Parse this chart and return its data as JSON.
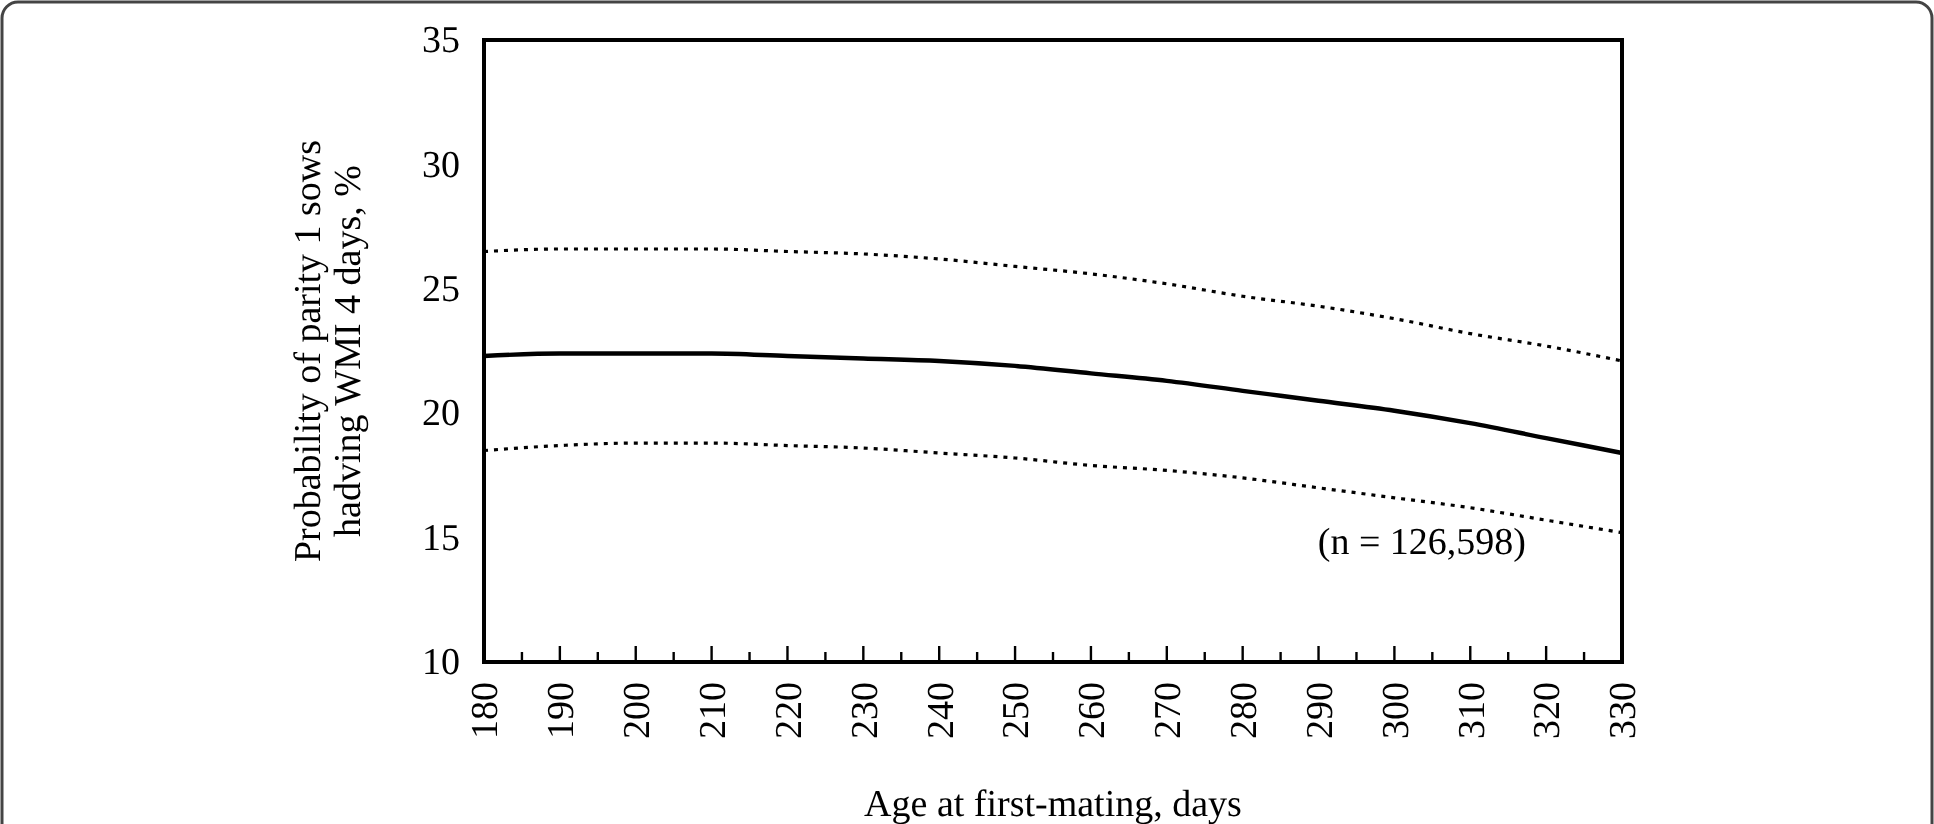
{
  "chart_data": {
    "type": "line",
    "xlabel": "Age at first-mating, days",
    "ylabel": "Probability of parity 1 sows hadving WMI 4 days, %",
    "x": [
      180,
      190,
      200,
      210,
      220,
      230,
      240,
      250,
      260,
      270,
      280,
      290,
      300,
      310,
      320,
      330
    ],
    "series": [
      {
        "color": "#000000",
        "line_style": "dotted",
        "values": [
          26.5,
          26.6,
          26.6,
          26.6,
          26.5,
          26.4,
          26.2,
          25.9,
          25.6,
          25.2,
          24.7,
          24.3,
          23.8,
          23.2,
          22.7,
          22.1
        ]
      },
      {
        "color": "#000000",
        "line_style": "solid",
        "values": [
          22.3,
          22.4,
          22.4,
          22.4,
          22.3,
          22.2,
          22.1,
          21.9,
          21.6,
          21.3,
          20.9,
          20.5,
          20.1,
          19.6,
          19.0,
          18.4
        ]
      },
      {
        "color": "#000000",
        "line_style": "dotted",
        "values": [
          18.5,
          18.7,
          18.8,
          18.8,
          18.7,
          18.6,
          18.4,
          18.2,
          17.9,
          17.7,
          17.4,
          17.0,
          16.6,
          16.2,
          15.7,
          15.2
        ]
      }
    ],
    "xlim": [
      180,
      330
    ],
    "ylim": [
      10,
      35
    ],
    "xticks": [
      180,
      {
        "value": 185,
        "label": null
      },
      190,
      {
        "value": 195,
        "label": null
      },
      200,
      {
        "value": 205,
        "label": null
      },
      210,
      {
        "value": 215,
        "label": null
      },
      220,
      {
        "value": 225,
        "label": null
      },
      230,
      {
        "value": 235,
        "label": null
      },
      240,
      {
        "value": 245,
        "label": null
      },
      250,
      {
        "value": 255,
        "label": null
      },
      260,
      {
        "value": 265,
        "label": null
      },
      270,
      {
        "value": 275,
        "label": null
      },
      280,
      {
        "value": 285,
        "label": null
      },
      290,
      {
        "value": 295,
        "label": null
      },
      300,
      {
        "value": 305,
        "label": null
      },
      310,
      {
        "value": 315,
        "label": null
      },
      320,
      {
        "value": 325,
        "label": null
      },
      330
    ],
    "yticks": [
      10,
      15,
      20,
      25,
      30,
      35
    ],
    "annotations": [
      "(n = 126,598)"
    ],
    "grid": false
  }
}
